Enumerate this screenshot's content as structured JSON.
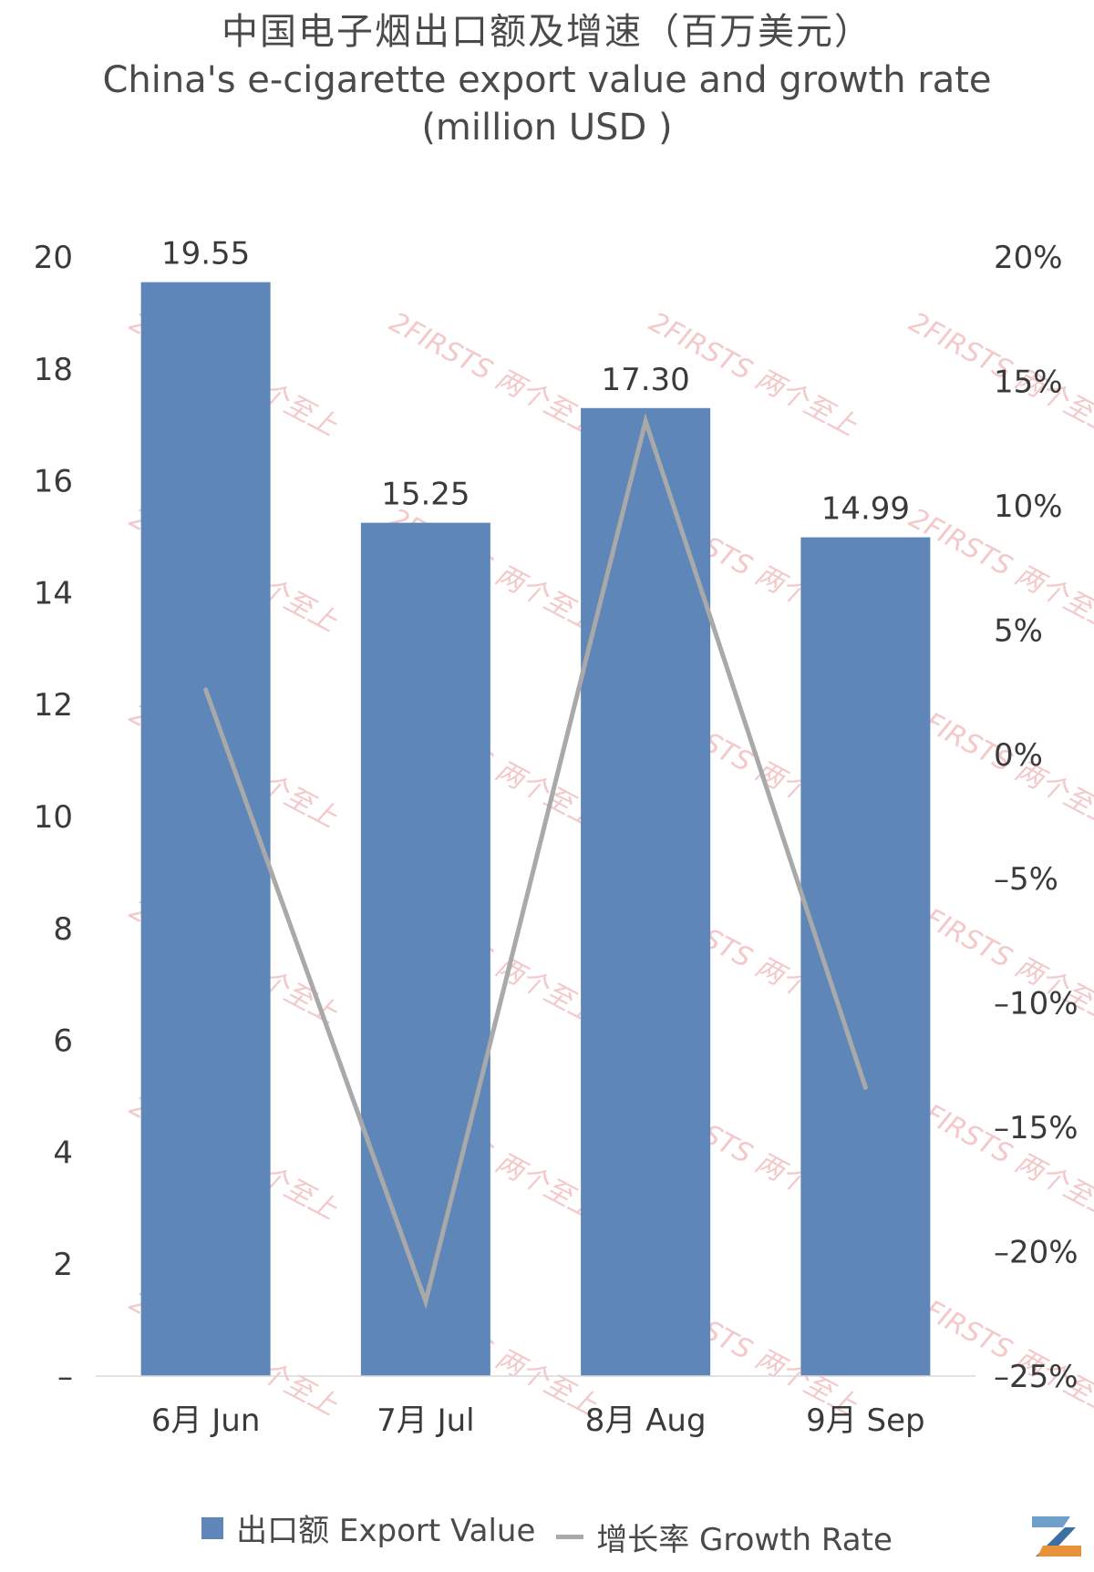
{
  "title": {
    "zh": "中国电子烟出口额及增速（百万美元）",
    "en": "China's e-cigarette export value and growth rate (million USD )"
  },
  "watermark": {
    "text": "2FIRSTS 两个至上"
  },
  "legend": {
    "bar_label": "出口额 Export Value",
    "line_label": "增长率 Growth Rate"
  },
  "chart_data": {
    "type": "bar",
    "categories": [
      "6月 Jun",
      "7月 Jul",
      "8月 Aug",
      "9月 Sep"
    ],
    "series": [
      {
        "name": "出口额 Export Value",
        "type": "bar",
        "axis": "left",
        "color": "#5f86b9",
        "values": [
          19.55,
          15.25,
          17.3,
          14.99
        ]
      },
      {
        "name": "增长率 Growth Rate",
        "type": "line",
        "axis": "right",
        "color": "#a9a9a9",
        "values": [
          2.6,
          -22.0,
          13.4,
          -13.4
        ]
      }
    ],
    "data_labels": [
      "19.55",
      "15.25",
      "17.30",
      "14.99"
    ],
    "y_left": {
      "ylim": [
        0,
        20
      ],
      "ticks": [
        "–",
        "2",
        "4",
        "6",
        "8",
        "10",
        "12",
        "14",
        "16",
        "18",
        "20"
      ]
    },
    "y_right": {
      "ylim": [
        -25,
        20
      ],
      "unit": "%",
      "ticks": [
        "–25%",
        "–20%",
        "–15%",
        "–10%",
        "–5%",
        "0%",
        "5%",
        "10%",
        "15%",
        "20%"
      ]
    },
    "grid": false,
    "legend_position": "bottom"
  }
}
